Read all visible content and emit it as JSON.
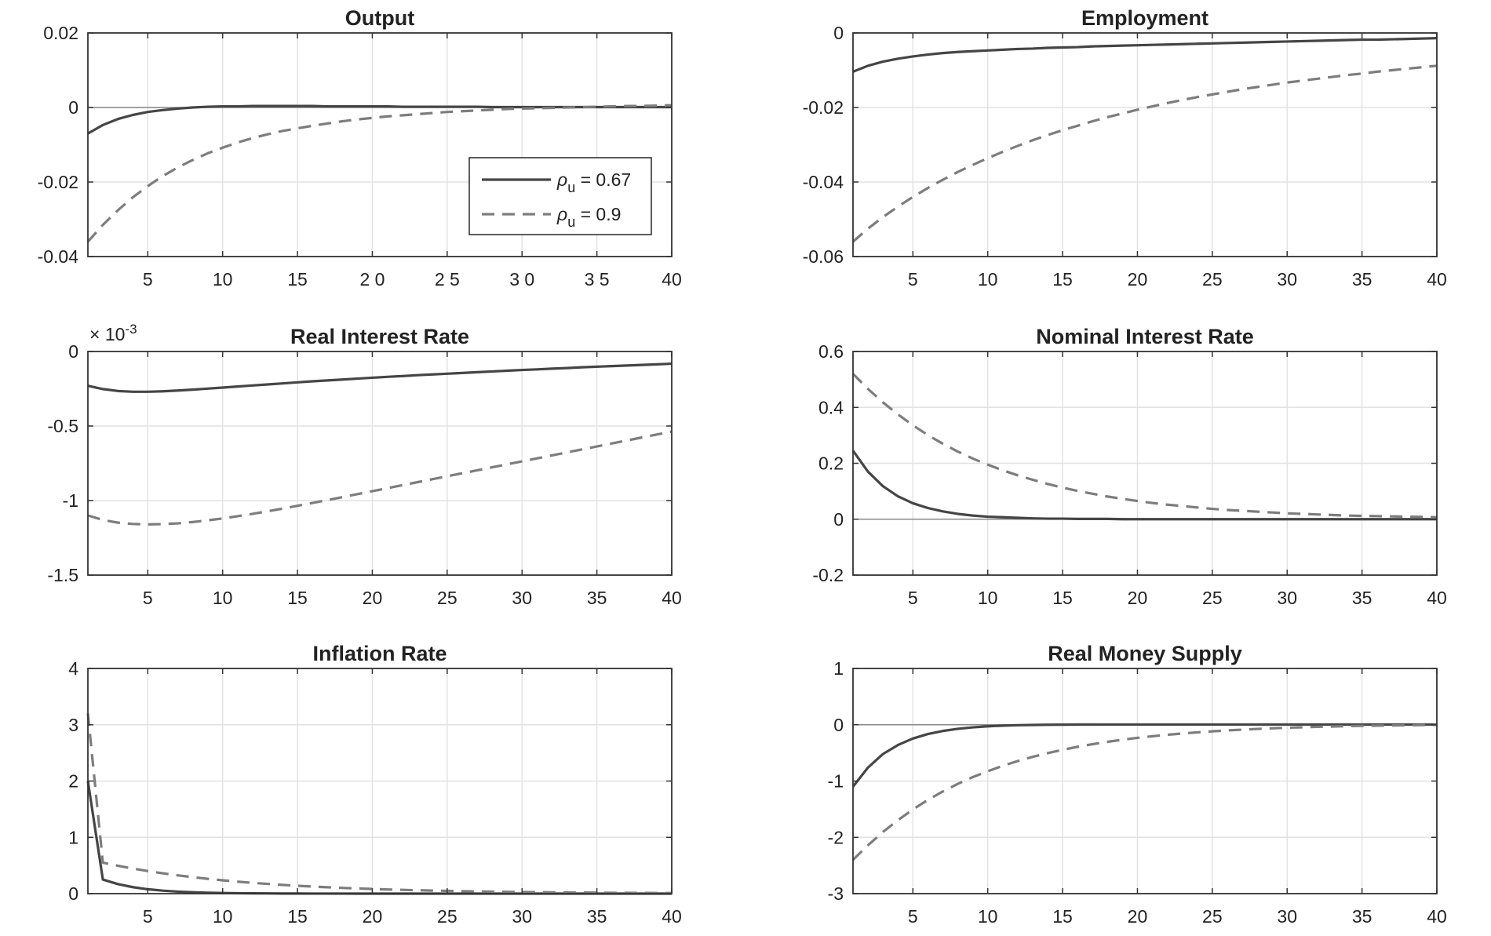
{
  "chart_data": [
    {
      "type": "line",
      "title": "Output",
      "x": [
        1,
        2,
        3,
        4,
        5,
        6,
        7,
        8,
        9,
        10,
        11,
        12,
        13,
        14,
        15,
        16,
        17,
        18,
        19,
        20,
        21,
        22,
        23,
        24,
        25,
        26,
        27,
        28,
        29,
        30,
        31,
        32,
        33,
        34,
        35,
        36,
        37,
        38,
        39,
        40
      ],
      "xlim": [
        1,
        40
      ],
      "ylim": [
        -0.04,
        0.02
      ],
      "xticks": [
        5,
        10,
        15,
        20,
        25,
        30,
        35,
        40
      ],
      "xtick_labels": [
        "5",
        "10",
        "15",
        "2 0",
        "2 5",
        "3 0",
        "3 5",
        "40"
      ],
      "yticks": [
        -0.04,
        -0.02,
        0,
        0.02
      ],
      "ytick_labels": [
        "-0.04",
        "-0.02",
        "0",
        "0.02"
      ],
      "zero_line": true,
      "legend": {
        "position": "lower-right",
        "entries": [
          {
            "symbol": "ρ",
            "sub": "u",
            "value": " = 0.67"
          },
          {
            "symbol": "ρ",
            "sub": "u",
            "value": " = 0.9"
          }
        ]
      },
      "series": [
        {
          "name": "ρu = 0.67",
          "style": "solid",
          "values": [
            -0.007,
            -0.0047,
            -0.0031,
            -0.002,
            -0.0012,
            -0.0007,
            -0.0003,
            0.0,
            0.0002,
            0.0003,
            0.0003,
            0.0004,
            0.0004,
            0.0004,
            0.0004,
            0.0004,
            0.0003,
            0.0003,
            0.0003,
            0.0003,
            0.0003,
            0.0002,
            0.0002,
            0.0002,
            0.0002,
            0.0002,
            0.0002,
            0.0001,
            0.0001,
            0.0001,
            0.0001,
            0.0001,
            0.0001,
            0.0001,
            0.0001,
            0.0001,
            0.0001,
            0.0001,
            0.0001,
            0.0001
          ]
        },
        {
          "name": "ρu = 0.9",
          "style": "dashed",
          "values": [
            -0.036,
            -0.0315,
            -0.0276,
            -0.0241,
            -0.0211,
            -0.0184,
            -0.0161,
            -0.0141,
            -0.0123,
            -0.0108,
            -0.0094,
            -0.0082,
            -0.0072,
            -0.0063,
            -0.0056,
            -0.0049,
            -0.0043,
            -0.0037,
            -0.0032,
            -0.0028,
            -0.0024,
            -0.0021,
            -0.0018,
            -0.0015,
            -0.0012,
            -0.001,
            -0.0008,
            -0.0006,
            -0.0004,
            -0.0003,
            -0.0002,
            -0.0001,
            0.0,
            0.0001,
            0.0002,
            0.0003,
            0.0004,
            0.0004,
            0.0005,
            0.0006
          ]
        }
      ]
    },
    {
      "type": "line",
      "title": "Employment",
      "x": [
        1,
        2,
        3,
        4,
        5,
        6,
        7,
        8,
        9,
        10,
        11,
        12,
        13,
        14,
        15,
        16,
        17,
        18,
        19,
        20,
        21,
        22,
        23,
        24,
        25,
        26,
        27,
        28,
        29,
        30,
        31,
        32,
        33,
        34,
        35,
        36,
        37,
        38,
        39,
        40
      ],
      "xlim": [
        1,
        40
      ],
      "ylim": [
        -0.06,
        0
      ],
      "xticks": [
        5,
        10,
        15,
        20,
        25,
        30,
        35,
        40
      ],
      "xtick_labels": [
        "5",
        "10",
        "15",
        "20",
        "25",
        "30",
        "35",
        "40"
      ],
      "yticks": [
        -0.06,
        -0.04,
        -0.02,
        0
      ],
      "ytick_labels": [
        "-0.06",
        "-0.04",
        "-0.02",
        "0"
      ],
      "zero_line": false,
      "series": [
        {
          "name": "ρu = 0.67",
          "style": "solid",
          "values": [
            -0.0104,
            -0.0088,
            -0.0077,
            -0.0069,
            -0.0063,
            -0.0058,
            -0.0054,
            -0.0051,
            -0.0049,
            -0.0047,
            -0.0045,
            -0.0043,
            -0.0042,
            -0.004,
            -0.0039,
            -0.0038,
            -0.0036,
            -0.0035,
            -0.0034,
            -0.0033,
            -0.0032,
            -0.0031,
            -0.003,
            -0.0029,
            -0.0028,
            -0.0027,
            -0.0026,
            -0.0025,
            -0.0024,
            -0.0023,
            -0.0022,
            -0.0021,
            -0.002,
            -0.0019,
            -0.0018,
            -0.0018,
            -0.0017,
            -0.0016,
            -0.0015,
            -0.0014
          ]
        },
        {
          "name": "ρu = 0.9",
          "style": "dashed",
          "values": [
            -0.056,
            -0.0525,
            -0.0494,
            -0.0466,
            -0.044,
            -0.0416,
            -0.0394,
            -0.0373,
            -0.0354,
            -0.0336,
            -0.0319,
            -0.0303,
            -0.0288,
            -0.0274,
            -0.0261,
            -0.0249,
            -0.0237,
            -0.0226,
            -0.0216,
            -0.0206,
            -0.0197,
            -0.0188,
            -0.018,
            -0.0172,
            -0.0165,
            -0.0158,
            -0.0151,
            -0.0145,
            -0.0139,
            -0.0133,
            -0.0128,
            -0.0123,
            -0.0118,
            -0.0113,
            -0.0109,
            -0.0104,
            -0.01,
            -0.0096,
            -0.0092,
            -0.0088
          ]
        }
      ]
    },
    {
      "type": "line",
      "title": "Real Interest Rate",
      "exponent_label": {
        "base": "× 10",
        "power": "-3"
      },
      "x": [
        1,
        2,
        3,
        4,
        5,
        6,
        7,
        8,
        9,
        10,
        11,
        12,
        13,
        14,
        15,
        16,
        17,
        18,
        19,
        20,
        21,
        22,
        23,
        24,
        25,
        26,
        27,
        28,
        29,
        30,
        31,
        32,
        33,
        34,
        35,
        36,
        37,
        38,
        39,
        40
      ],
      "xlim": [
        1,
        40
      ],
      "ylim": [
        -1.5,
        0
      ],
      "xticks": [
        5,
        10,
        15,
        20,
        25,
        30,
        35,
        40
      ],
      "xtick_labels": [
        "5",
        "10",
        "15",
        "20",
        "25",
        "30",
        "35",
        "40"
      ],
      "yticks": [
        -1.5,
        -1,
        -0.5,
        0
      ],
      "ytick_labels": [
        "-1.5",
        "-1",
        "-0.5",
        "0"
      ],
      "zero_line": false,
      "series": [
        {
          "name": "ρu = 0.67",
          "style": "solid",
          "values": [
            -0.23,
            -0.252,
            -0.265,
            -0.27,
            -0.27,
            -0.267,
            -0.262,
            -0.256,
            -0.249,
            -0.242,
            -0.235,
            -0.228,
            -0.221,
            -0.214,
            -0.207,
            -0.2,
            -0.194,
            -0.188,
            -0.182,
            -0.176,
            -0.17,
            -0.165,
            -0.159,
            -0.154,
            -0.149,
            -0.144,
            -0.139,
            -0.134,
            -0.129,
            -0.124,
            -0.12,
            -0.115,
            -0.111,
            -0.106,
            -0.102,
            -0.098,
            -0.094,
            -0.09,
            -0.086,
            -0.082
          ]
        },
        {
          "name": "ρu = 0.9",
          "style": "dashed",
          "values": [
            -1.1,
            -1.13,
            -1.148,
            -1.157,
            -1.16,
            -1.158,
            -1.153,
            -1.144,
            -1.133,
            -1.12,
            -1.105,
            -1.089,
            -1.072,
            -1.054,
            -1.035,
            -1.016,
            -0.997,
            -0.977,
            -0.957,
            -0.937,
            -0.917,
            -0.897,
            -0.877,
            -0.857,
            -0.837,
            -0.817,
            -0.797,
            -0.777,
            -0.757,
            -0.737,
            -0.717,
            -0.697,
            -0.677,
            -0.657,
            -0.637,
            -0.617,
            -0.597,
            -0.577,
            -0.557,
            -0.537
          ]
        }
      ]
    },
    {
      "type": "line",
      "title": "Nominal Interest Rate",
      "x": [
        1,
        2,
        3,
        4,
        5,
        6,
        7,
        8,
        9,
        10,
        11,
        12,
        13,
        14,
        15,
        16,
        17,
        18,
        19,
        20,
        21,
        22,
        23,
        24,
        25,
        26,
        27,
        28,
        29,
        30,
        31,
        32,
        33,
        34,
        35,
        36,
        37,
        38,
        39,
        40
      ],
      "xlim": [
        1,
        40
      ],
      "ylim": [
        -0.2,
        0.6
      ],
      "xticks": [
        5,
        10,
        15,
        20,
        25,
        30,
        35,
        40
      ],
      "xtick_labels": [
        "5",
        "10",
        "15",
        "20",
        "25",
        "30",
        "35",
        "40"
      ],
      "yticks": [
        -0.2,
        0,
        0.2,
        0.4,
        0.6
      ],
      "ytick_labels": [
        "-0.2",
        "0",
        "0.2",
        "0.4",
        "0.6"
      ],
      "zero_line": true,
      "series": [
        {
          "name": "ρu = 0.67",
          "style": "solid",
          "values": [
            0.245,
            0.17,
            0.118,
            0.082,
            0.057,
            0.04,
            0.028,
            0.019,
            0.013,
            0.009,
            0.007,
            0.005,
            0.003,
            0.002,
            0.002,
            0.001,
            0.001,
            0.001,
            0.0,
            0.0,
            0.0,
            0.0,
            0.0,
            0.0,
            0.0,
            0.0,
            0.0,
            0.0,
            0.0,
            0.0,
            0.0,
            0.0,
            0.0,
            0.0,
            0.0,
            0.0,
            0.0,
            0.0,
            0.0,
            0.0
          ]
        },
        {
          "name": "ρu = 0.9",
          "style": "dashed",
          "values": [
            0.52,
            0.466,
            0.418,
            0.375,
            0.336,
            0.301,
            0.27,
            0.242,
            0.217,
            0.195,
            0.175,
            0.157,
            0.141,
            0.126,
            0.113,
            0.101,
            0.091,
            0.081,
            0.073,
            0.065,
            0.058,
            0.052,
            0.047,
            0.042,
            0.037,
            0.033,
            0.03,
            0.027,
            0.024,
            0.021,
            0.019,
            0.017,
            0.015,
            0.013,
            0.012,
            0.011,
            0.01,
            0.009,
            0.008,
            0.007
          ]
        }
      ]
    },
    {
      "type": "line",
      "title": "Inflation Rate",
      "x": [
        1,
        2,
        3,
        4,
        5,
        6,
        7,
        8,
        9,
        10,
        11,
        12,
        13,
        14,
        15,
        16,
        17,
        18,
        19,
        20,
        21,
        22,
        23,
        24,
        25,
        26,
        27,
        28,
        29,
        30,
        31,
        32,
        33,
        34,
        35,
        36,
        37,
        38,
        39,
        40
      ],
      "xlim": [
        1,
        40
      ],
      "ylim": [
        0,
        4
      ],
      "xticks": [
        5,
        10,
        15,
        20,
        25,
        30,
        35,
        40
      ],
      "xtick_labels": [
        "5",
        "10",
        "15",
        "20",
        "25",
        "30",
        "35",
        "40"
      ],
      "yticks": [
        0,
        1,
        2,
        3,
        4
      ],
      "ytick_labels": [
        "0",
        "1",
        "2",
        "3",
        "4"
      ],
      "zero_line": false,
      "series": [
        {
          "name": "ρu = 0.67",
          "style": "solid",
          "values": [
            2.0,
            0.25,
            0.17,
            0.115,
            0.078,
            0.053,
            0.036,
            0.024,
            0.016,
            0.011,
            0.008,
            0.005,
            0.004,
            0.002,
            0.002,
            0.001,
            0.001,
            0.001,
            0.0,
            0.0,
            0.0,
            0.0,
            0.0,
            0.0,
            0.0,
            0.0,
            0.0,
            0.0,
            0.0,
            0.0,
            0.0,
            0.0,
            0.0,
            0.0,
            0.0,
            0.0,
            0.0,
            0.0,
            0.0,
            0.0
          ]
        },
        {
          "name": "ρu = 0.9",
          "style": "dashed",
          "values": [
            3.2,
            0.55,
            0.495,
            0.446,
            0.401,
            0.361,
            0.325,
            0.293,
            0.263,
            0.237,
            0.213,
            0.192,
            0.173,
            0.155,
            0.14,
            0.126,
            0.113,
            0.102,
            0.092,
            0.083,
            0.074,
            0.067,
            0.06,
            0.054,
            0.049,
            0.044,
            0.04,
            0.036,
            0.032,
            0.029,
            0.026,
            0.023,
            0.021,
            0.019,
            0.017,
            0.015,
            0.014,
            0.012,
            0.011,
            0.01
          ]
        }
      ]
    },
    {
      "type": "line",
      "title": "Real Money Supply",
      "x": [
        1,
        2,
        3,
        4,
        5,
        6,
        7,
        8,
        9,
        10,
        11,
        12,
        13,
        14,
        15,
        16,
        17,
        18,
        19,
        20,
        21,
        22,
        23,
        24,
        25,
        26,
        27,
        28,
        29,
        30,
        31,
        32,
        33,
        34,
        35,
        36,
        37,
        38,
        39,
        40
      ],
      "xlim": [
        1,
        40
      ],
      "ylim": [
        -3,
        1
      ],
      "xticks": [
        5,
        10,
        15,
        20,
        25,
        30,
        35,
        40
      ],
      "xtick_labels": [
        "5",
        "10",
        "15",
        "20",
        "25",
        "30",
        "35",
        "40"
      ],
      "yticks": [
        -3,
        -2,
        -1,
        0,
        1
      ],
      "ytick_labels": [
        "-3",
        "-2",
        "-1",
        "0",
        "1"
      ],
      "zero_line": true,
      "series": [
        {
          "name": "ρu = 0.67",
          "style": "solid",
          "values": [
            -1.1,
            -0.76,
            -0.52,
            -0.36,
            -0.245,
            -0.165,
            -0.11,
            -0.072,
            -0.046,
            -0.028,
            -0.016,
            -0.008,
            -0.003,
            0.0,
            0.002,
            0.003,
            0.003,
            0.004,
            0.004,
            0.004,
            0.004,
            0.004,
            0.004,
            0.004,
            0.004,
            0.004,
            0.004,
            0.004,
            0.004,
            0.004,
            0.004,
            0.004,
            0.004,
            0.004,
            0.004,
            0.004,
            0.004,
            0.004,
            0.004,
            0.004
          ]
        },
        {
          "name": "ρu = 0.9",
          "style": "dashed",
          "values": [
            -2.4,
            -2.14,
            -1.905,
            -1.695,
            -1.505,
            -1.335,
            -1.185,
            -1.05,
            -0.93,
            -0.825,
            -0.73,
            -0.645,
            -0.57,
            -0.505,
            -0.445,
            -0.392,
            -0.345,
            -0.303,
            -0.266,
            -0.233,
            -0.204,
            -0.178,
            -0.155,
            -0.135,
            -0.117,
            -0.101,
            -0.087,
            -0.074,
            -0.063,
            -0.053,
            -0.045,
            -0.037,
            -0.031,
            -0.025,
            -0.02,
            -0.016,
            -0.012,
            -0.009,
            -0.006,
            -0.004
          ]
        }
      ]
    }
  ]
}
